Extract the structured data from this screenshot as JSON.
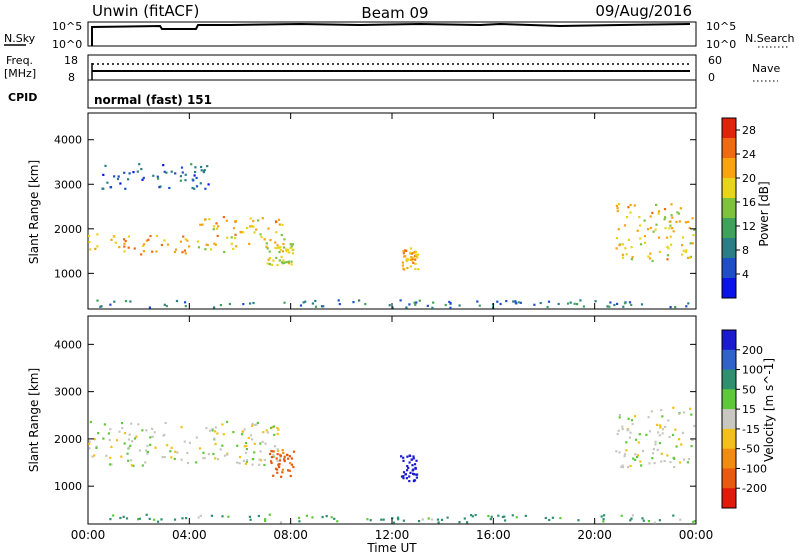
{
  "header": {
    "station": "Unwin (fitACF)",
    "beam": "Beam 09",
    "date": "09/Aug/2016"
  },
  "panels": {
    "nsky": {
      "left_label": "N.Sky",
      "ticks_left": [
        "10^5",
        "10^0"
      ],
      "ticks_right": [
        "10^5",
        "10^0"
      ],
      "right_label": "N.Search"
    },
    "freq": {
      "left_label_1": "Freq.",
      "left_label_2": "[MHz]",
      "ticks_left": [
        "18",
        "8"
      ],
      "ticks_right": [
        "60",
        "0"
      ],
      "right_label": "Nave"
    },
    "cpid": {
      "label": "CPID",
      "text": "normal (fast) 151"
    }
  },
  "chart_data": [
    {
      "type": "heatmap",
      "name": "power",
      "ylabel": "Slant Range [km]",
      "ylim": [
        200,
        4600
      ],
      "yticks": [
        "1000",
        "2000",
        "3000",
        "4000"
      ],
      "xlim": [
        "00:00",
        "24:00"
      ],
      "colorbar": {
        "label": "Power [dB]",
        "ticks": [
          "4",
          "8",
          "12",
          "16",
          "20",
          "24",
          "28"
        ],
        "range": [
          0,
          30
        ],
        "colors": [
          "#0a14e6",
          "#1f4fc8",
          "#2b7e86",
          "#3fa15a",
          "#7cc23c",
          "#e8d418",
          "#f7a40e",
          "#ef6a10",
          "#e2230c"
        ]
      },
      "regions": [
        {
          "t": [
            0.0,
            4.2
          ],
          "r": [
            1450,
            1900
          ],
          "level": 22
        },
        {
          "t": [
            4.2,
            7.8
          ],
          "r": [
            1500,
            2300
          ],
          "level": 20
        },
        {
          "t": [
            7.0,
            8.1
          ],
          "r": [
            1200,
            1700
          ],
          "level": 18
        },
        {
          "t": [
            12.3,
            13.0
          ],
          "r": [
            1100,
            1600
          ],
          "level": 22
        },
        {
          "t": [
            20.8,
            23.9
          ],
          "r": [
            1300,
            2600
          ],
          "level": 20
        },
        {
          "t": [
            0.5,
            4.8
          ],
          "r": [
            2900,
            3500
          ],
          "level": 6
        },
        {
          "t": [
            0.0,
            24.0
          ],
          "r": [
            250,
            420
          ],
          "level": 7
        }
      ]
    },
    {
      "type": "heatmap",
      "name": "velocity",
      "ylabel": "Slant Range [km]",
      "ylim": [
        200,
        4600
      ],
      "yticks": [
        "1000",
        "2000",
        "3000",
        "4000"
      ],
      "xlabel": "Time UT",
      "xticks": [
        "00:00",
        "04:00",
        "08:00",
        "12:00",
        "16:00",
        "20:00",
        "00:00"
      ],
      "colorbar": {
        "label": "Velocity [m s^-1]",
        "ticks": [
          "200",
          "100",
          "50",
          "15",
          "-15",
          "-50",
          "-100",
          "-200"
        ],
        "colors": [
          "#1a1ad0",
          "#2f63c9",
          "#2f8f6e",
          "#5fc83a",
          "#c8c8c0",
          "#f2c018",
          "#f28c10",
          "#ea5a0e",
          "#e21a0c"
        ]
      },
      "regions": [
        {
          "t": [
            0.0,
            7.6
          ],
          "r": [
            1450,
            2400
          ],
          "value": 0
        },
        {
          "t": [
            7.1,
            8.1
          ],
          "r": [
            1200,
            1800
          ],
          "value": -120
        },
        {
          "t": [
            12.3,
            13.0
          ],
          "r": [
            1100,
            1700
          ],
          "value": 180
        },
        {
          "t": [
            20.8,
            23.9
          ],
          "r": [
            1400,
            2700
          ],
          "value": 0
        },
        {
          "t": [
            0.0,
            24.0
          ],
          "r": [
            250,
            420
          ],
          "value": 40
        }
      ]
    }
  ]
}
